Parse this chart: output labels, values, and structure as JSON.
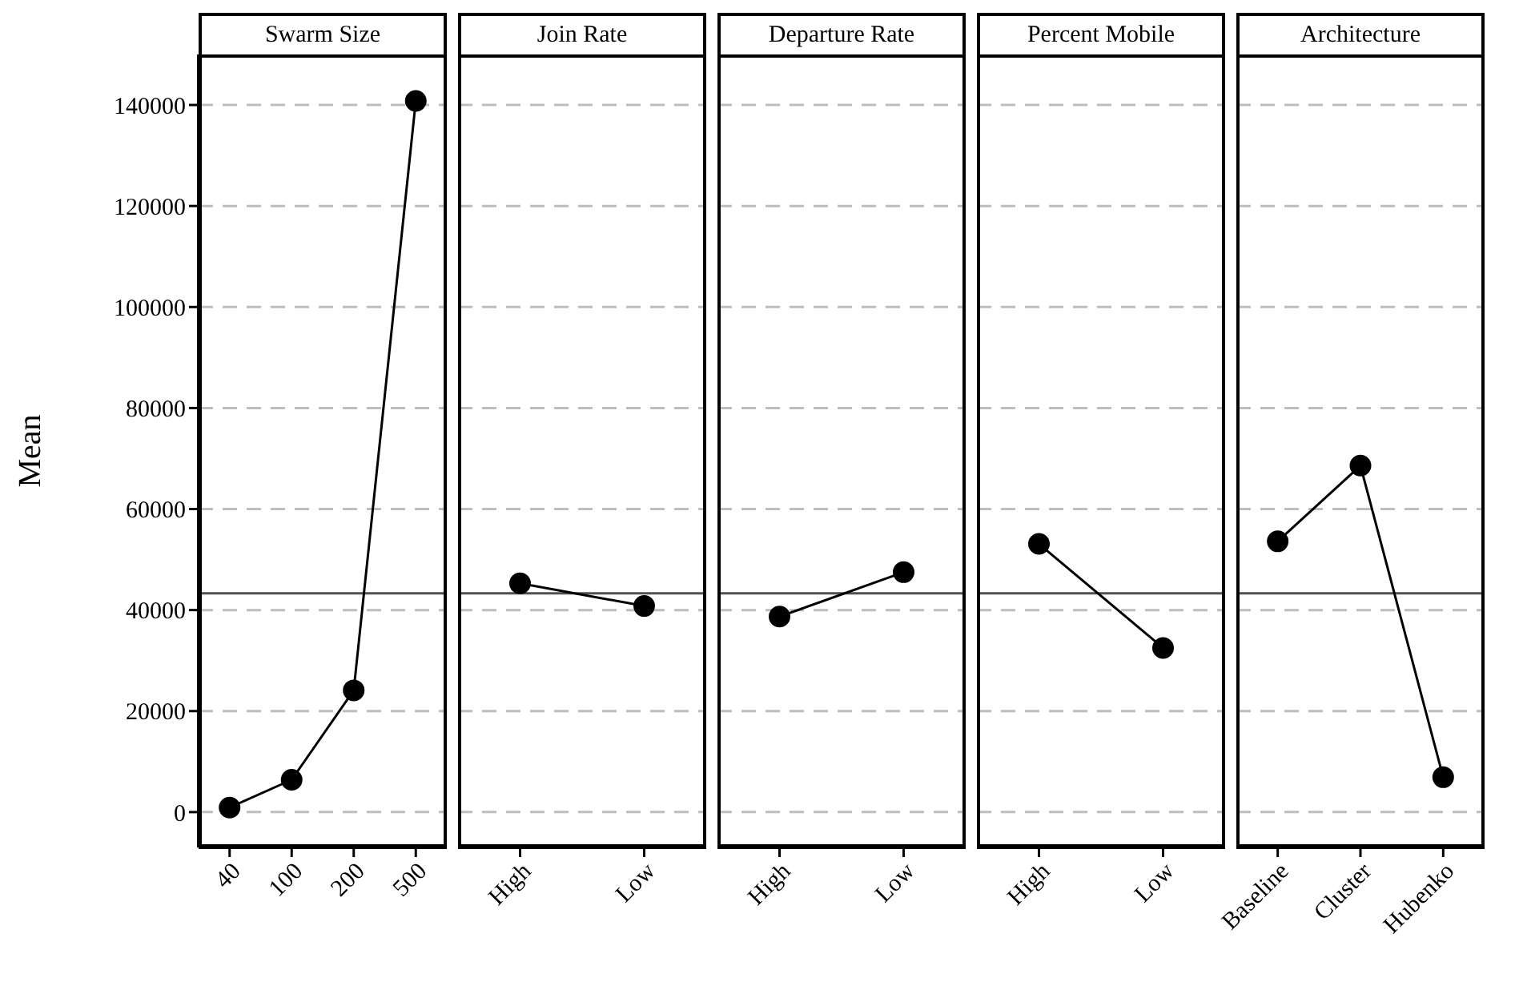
{
  "chart_data": [
    {
      "type": "line",
      "title": "Swarm Size",
      "ylabel": "Mean",
      "categories": [
        "40",
        "100",
        "200",
        "500"
      ],
      "values": [
        900,
        6400,
        24100,
        140800
      ],
      "color": "#000000",
      "marker": "circle",
      "ylim": [
        -7000,
        150000
      ],
      "yticks": [
        0,
        20000,
        40000,
        60000,
        80000,
        100000,
        120000,
        140000
      ],
      "grid": "y",
      "ref_lines": [
        {
          "axis": "y",
          "value": 43300,
          "color": "#505050"
        }
      ]
    },
    {
      "type": "line",
      "title": "Join Rate",
      "categories": [
        "High",
        "Low"
      ],
      "values": [
        45300,
        40800
      ],
      "color": "#000000",
      "marker": "circle",
      "ylim": [
        -7000,
        150000
      ],
      "yticks": [
        0,
        20000,
        40000,
        60000,
        80000,
        100000,
        120000,
        140000
      ],
      "grid": "y",
      "tick_labels": "x",
      "ref_lines": [
        {
          "axis": "y",
          "value": 43300,
          "color": "#505050"
        }
      ]
    },
    {
      "type": "line",
      "title": "Departure Rate",
      "categories": [
        "High",
        "Low"
      ],
      "values": [
        38700,
        47500
      ],
      "color": "#000000",
      "marker": "circle",
      "ylim": [
        -7000,
        150000
      ],
      "yticks": [
        0,
        20000,
        40000,
        60000,
        80000,
        100000,
        120000,
        140000
      ],
      "grid": "y",
      "tick_labels": "x",
      "ref_lines": [
        {
          "axis": "y",
          "value": 43300,
          "color": "#505050"
        }
      ]
    },
    {
      "type": "line",
      "title": "Percent Mobile",
      "categories": [
        "High",
        "Low"
      ],
      "values": [
        53100,
        32500
      ],
      "color": "#000000",
      "marker": "circle",
      "ylim": [
        -7000,
        150000
      ],
      "yticks": [
        0,
        20000,
        40000,
        60000,
        80000,
        100000,
        120000,
        140000
      ],
      "grid": "y",
      "tick_labels": "x",
      "ref_lines": [
        {
          "axis": "y",
          "value": 43300,
          "color": "#505050"
        }
      ]
    },
    {
      "type": "line",
      "title": "Architecture",
      "categories": [
        "Baseline",
        "Cluster",
        "Hubenko"
      ],
      "values": [
        53600,
        68600,
        6900
      ],
      "color": "#000000",
      "marker": "circle",
      "ylim": [
        -7000,
        150000
      ],
      "yticks": [
        0,
        20000,
        40000,
        60000,
        80000,
        100000,
        120000,
        140000
      ],
      "grid": "y",
      "tick_labels": "x",
      "ref_lines": [
        {
          "axis": "y",
          "value": 43300,
          "color": "#505050"
        }
      ]
    }
  ]
}
